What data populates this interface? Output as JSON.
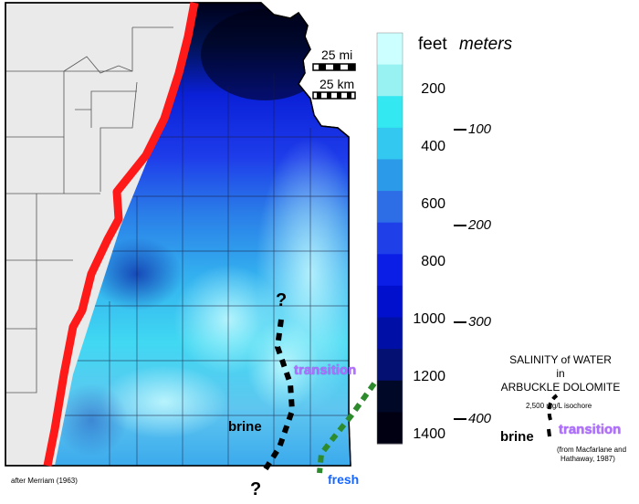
{
  "legend": {
    "feet_title": "feet",
    "meters_title": "meters",
    "colors": [
      "#ccffff",
      "#99f2f2",
      "#33e8f0",
      "#33c8ef",
      "#2b9ae8",
      "#2d6ee6",
      "#1f3fe8",
      "#0a1ee6",
      "#0010cc",
      "#0010a6",
      "#041072",
      "#000828",
      "#000012"
    ],
    "feet_ticks": [
      "200",
      "400",
      "600",
      "800",
      "1000",
      "1200",
      "1400"
    ],
    "meter_ticks": [
      "100",
      "200",
      "300",
      "400"
    ]
  },
  "scale_bar": {
    "miles_label": "25 mi",
    "km_label": "25 km"
  },
  "map_labels": {
    "brine": "brine",
    "transition": "transition",
    "fresh": "fresh",
    "question_top": "?",
    "question_bottom": "?",
    "credit": "after Merriam (1963)",
    "fault_color": "#ff1a1a"
  },
  "salinity_key": {
    "title_line1": "SALINITY of WATER",
    "title_line2": "in",
    "title_line3": "ARBUCKLE DOLOMITE",
    "isochore_label": "2,500 mg/L isochore",
    "brine_label": "brine",
    "transition_label": "transition",
    "source_line1": "(from Macfarlane and",
    "source_line2": "Hathaway, 1987)"
  }
}
